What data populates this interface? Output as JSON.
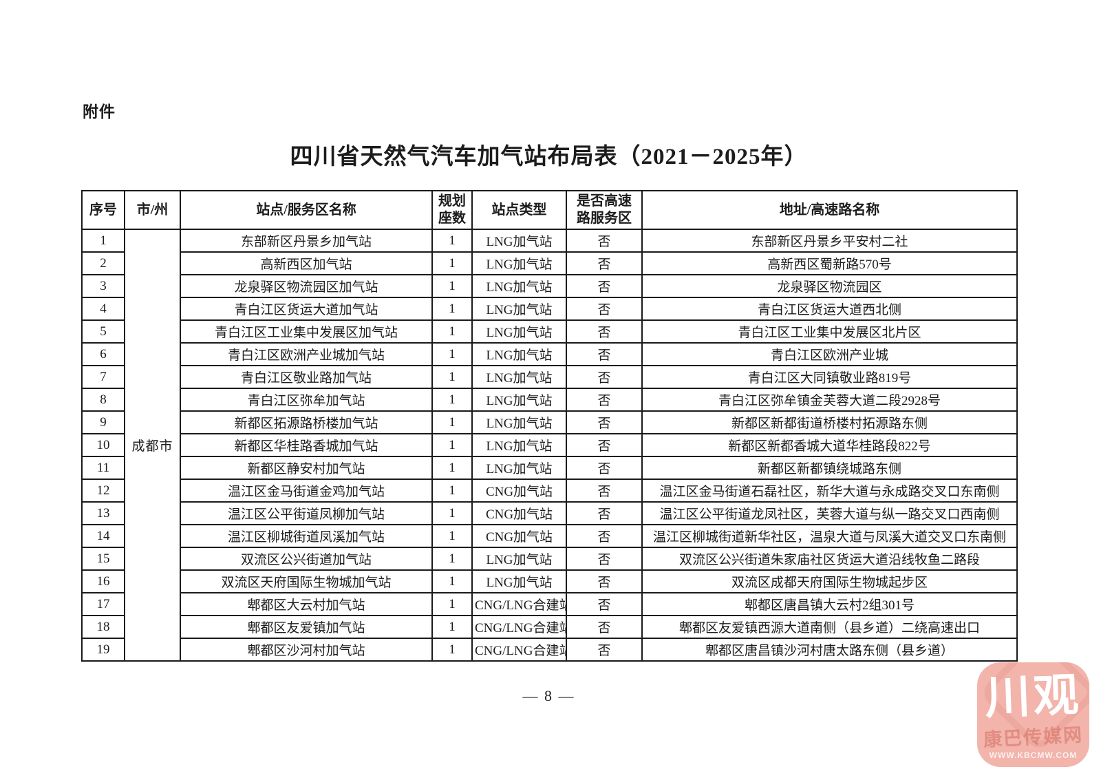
{
  "page": {
    "attachment_label": "附件",
    "title": "四川省天然气汽车加气站布局表（2021－2025年）",
    "page_number": "— 8 —"
  },
  "table": {
    "headers": {
      "index": "序号",
      "city": "市/州",
      "station": "站点/服务区名称",
      "planned_line1": "规划",
      "planned_line2": "座数",
      "type": "站点类型",
      "highway_line1": "是否高速",
      "highway_line2": "路服务区",
      "address": "地址/高速路名称"
    },
    "city_group": "成都市",
    "rows": [
      {
        "no": "1",
        "station": "东部新区丹景乡加气站",
        "planned": "1",
        "type": "LNG加气站",
        "highway": "否",
        "address": "东部新区丹景乡平安村二社"
      },
      {
        "no": "2",
        "station": "高新西区加气站",
        "planned": "1",
        "type": "LNG加气站",
        "highway": "否",
        "address": "高新西区蜀新路570号"
      },
      {
        "no": "3",
        "station": "龙泉驿区物流园区加气站",
        "planned": "1",
        "type": "LNG加气站",
        "highway": "否",
        "address": "龙泉驿区物流园区"
      },
      {
        "no": "4",
        "station": "青白江区货运大道加气站",
        "planned": "1",
        "type": "LNG加气站",
        "highway": "否",
        "address": "青白江区货运大道西北侧"
      },
      {
        "no": "5",
        "station": "青白江区工业集中发展区加气站",
        "planned": "1",
        "type": "LNG加气站",
        "highway": "否",
        "address": "青白江区工业集中发展区北片区"
      },
      {
        "no": "6",
        "station": "青白江区欧洲产业城加气站",
        "planned": "1",
        "type": "LNG加气站",
        "highway": "否",
        "address": "青白江区欧洲产业城"
      },
      {
        "no": "7",
        "station": "青白江区敬业路加气站",
        "planned": "1",
        "type": "LNG加气站",
        "highway": "否",
        "address": "青白江区大同镇敬业路819号"
      },
      {
        "no": "8",
        "station": "青白江区弥牟加气站",
        "planned": "1",
        "type": "LNG加气站",
        "highway": "否",
        "address": "青白江区弥牟镇金芙蓉大道二段2928号"
      },
      {
        "no": "9",
        "station": "新都区拓源路桥楼加气站",
        "planned": "1",
        "type": "LNG加气站",
        "highway": "否",
        "address": "新都区新都街道桥楼村拓源路东侧"
      },
      {
        "no": "10",
        "station": "新都区华桂路香城加气站",
        "planned": "1",
        "type": "LNG加气站",
        "highway": "否",
        "address": "新都区新都香城大道华桂路段822号"
      },
      {
        "no": "11",
        "station": "新都区静安村加气站",
        "planned": "1",
        "type": "LNG加气站",
        "highway": "否",
        "address": "新都区新都镇绕城路东侧"
      },
      {
        "no": "12",
        "station": "温江区金马街道金鸡加气站",
        "planned": "1",
        "type": "CNG加气站",
        "highway": "否",
        "address": "温江区金马街道石磊社区，新华大道与永成路交叉口东南侧"
      },
      {
        "no": "13",
        "station": "温江区公平街道凤柳加气站",
        "planned": "1",
        "type": "CNG加气站",
        "highway": "否",
        "address": "温江区公平街道龙凤社区，芙蓉大道与纵一路交叉口西南侧"
      },
      {
        "no": "14",
        "station": "温江区柳城街道凤溪加气站",
        "planned": "1",
        "type": "CNG加气站",
        "highway": "否",
        "address": "温江区柳城街道新华社区，温泉大道与凤溪大道交叉口东南侧"
      },
      {
        "no": "15",
        "station": "双流区公兴街道加气站",
        "planned": "1",
        "type": "LNG加气站",
        "highway": "否",
        "address": "双流区公兴街道朱家庙社区货运大道沿线牧鱼二路段"
      },
      {
        "no": "16",
        "station": "双流区天府国际生物城加气站",
        "planned": "1",
        "type": "LNG加气站",
        "highway": "否",
        "address": "双流区成都天府国际生物城起步区"
      },
      {
        "no": "17",
        "station": "郫都区大云村加气站",
        "planned": "1",
        "type": "CNG/LNG合建站",
        "highway": "否",
        "address": "郫都区唐昌镇大云村2组301号"
      },
      {
        "no": "18",
        "station": "郫都区友爱镇加气站",
        "planned": "1",
        "type": "CNG/LNG合建站",
        "highway": "否",
        "address": "郫都区友爱镇西源大道南侧（县乡道）二绕高速出口"
      },
      {
        "no": "19",
        "station": "郫都区沙河村加气站",
        "planned": "1",
        "type": "CNG/LNG合建站",
        "highway": "否",
        "address": "郫都区唐昌镇沙河村唐太路东侧（县乡道）"
      }
    ]
  },
  "watermark": {
    "logo_text": "川观",
    "subtitle": "康巴传媒网",
    "url": "WWW.KBCMW.COM",
    "bg_color": "#f2b4ab",
    "text_color": "#ffffff"
  }
}
